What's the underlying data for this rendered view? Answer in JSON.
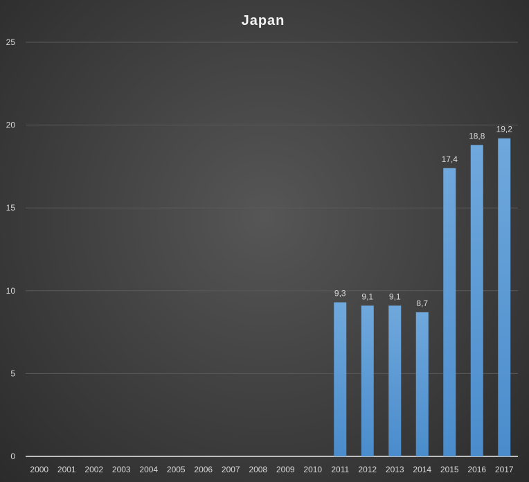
{
  "chart_data": {
    "type": "bar",
    "title": "Japan",
    "xlabel": "",
    "ylabel": "",
    "categories": [
      "2000",
      "2001",
      "2002",
      "2003",
      "2004",
      "2005",
      "2006",
      "2007",
      "2008",
      "2009",
      "2010",
      "2011",
      "2012",
      "2013",
      "2014",
      "2015",
      "2016",
      "2017"
    ],
    "values": [
      null,
      null,
      null,
      null,
      null,
      null,
      null,
      null,
      null,
      null,
      null,
      9.3,
      9.1,
      9.1,
      8.7,
      17.4,
      18.8,
      19.2
    ],
    "data_labels": [
      "",
      "",
      "",
      "",
      "",
      "",
      "",
      "",
      "",
      "",
      "",
      "9,3",
      "9,1",
      "9,1",
      "8,7",
      "17,4",
      "18,8",
      "19,2"
    ],
    "ylim": [
      0,
      25
    ],
    "yticks": [
      "0",
      "5",
      "10",
      "15",
      "20",
      "25"
    ],
    "grid": true,
    "legend": "none",
    "colors": {
      "bar": "#5b9bd5",
      "grid": "#5a5a5a",
      "text": "#d9d9d9",
      "title": "#f2f2f2"
    }
  }
}
